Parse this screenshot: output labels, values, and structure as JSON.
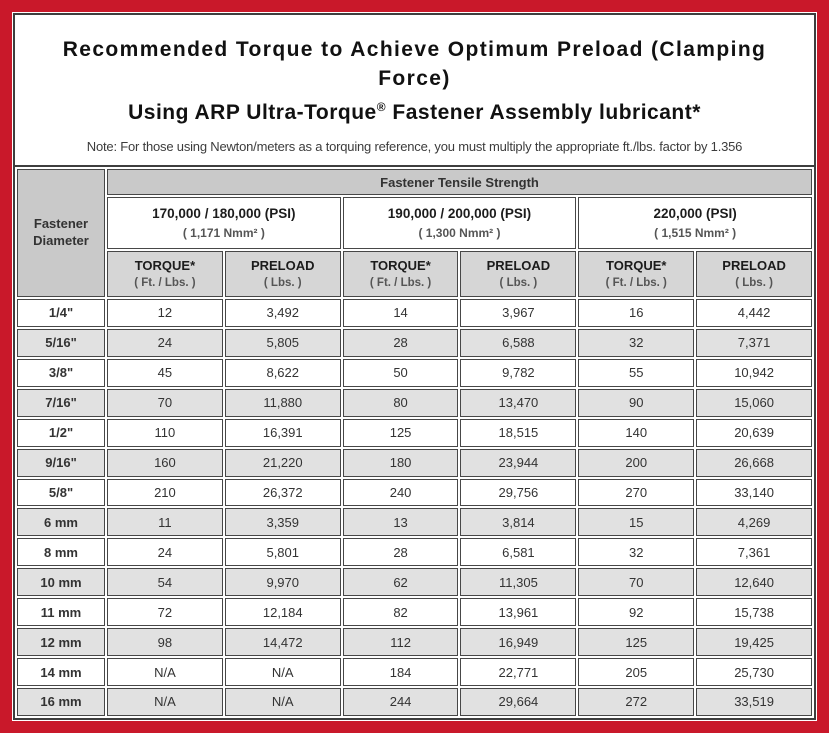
{
  "frame": {
    "border_color": "#c9182a"
  },
  "title": {
    "line1": "Recommended Torque to Achieve Optimum Preload (Clamping Force)",
    "line2_prefix": "Using ARP Ultra-Torque",
    "line2_reg_mark": "®",
    "line2_suffix": " Fastener Assembly lubricant*",
    "note": "Note: For those using Newton/meters as a torquing reference, you must multiply the appropriate ft./lbs. factor by 1.356"
  },
  "table": {
    "corner_header": "Fastener Diameter",
    "tensile_strength_header": "Fastener Tensile Strength",
    "strength_groups": [
      {
        "psi": "170,000 / 180,000 (PSI)",
        "nmm2": "( 1,171 Nmm² )"
      },
      {
        "psi": "190,000 / 200,000 (PSI)",
        "nmm2": "( 1,300 Nmm² )"
      },
      {
        "psi": "220,000 (PSI)",
        "nmm2": "( 1,515 Nmm² )"
      }
    ],
    "measure_headers": [
      {
        "label": "TORQUE*",
        "unit": "( Ft. / Lbs. )"
      },
      {
        "label": "PRELOAD",
        "unit": "( Lbs. )"
      }
    ],
    "rows": [
      {
        "label": "1/4\"",
        "values": [
          "12",
          "3,492",
          "14",
          "3,967",
          "16",
          "4,442"
        ]
      },
      {
        "label": "5/16\"",
        "values": [
          "24",
          "5,805",
          "28",
          "6,588",
          "32",
          "7,371"
        ]
      },
      {
        "label": "3/8\"",
        "values": [
          "45",
          "8,622",
          "50",
          "9,782",
          "55",
          "10,942"
        ]
      },
      {
        "label": "7/16\"",
        "values": [
          "70",
          "11,880",
          "80",
          "13,470",
          "90",
          "15,060"
        ]
      },
      {
        "label": "1/2\"",
        "values": [
          "110",
          "16,391",
          "125",
          "18,515",
          "140",
          "20,639"
        ]
      },
      {
        "label": "9/16\"",
        "values": [
          "160",
          "21,220",
          "180",
          "23,944",
          "200",
          "26,668"
        ]
      },
      {
        "label": "5/8\"",
        "values": [
          "210",
          "26,372",
          "240",
          "29,756",
          "270",
          "33,140"
        ]
      },
      {
        "label": "6 mm",
        "values": [
          "11",
          "3,359",
          "13",
          "3,814",
          "15",
          "4,269"
        ]
      },
      {
        "label": "8 mm",
        "values": [
          "24",
          "5,801",
          "28",
          "6,581",
          "32",
          "7,361"
        ]
      },
      {
        "label": "10 mm",
        "values": [
          "54",
          "9,970",
          "62",
          "11,305",
          "70",
          "12,640"
        ]
      },
      {
        "label": "11 mm",
        "values": [
          "72",
          "12,184",
          "82",
          "13,961",
          "92",
          "15,738"
        ]
      },
      {
        "label": "12 mm",
        "values": [
          "98",
          "14,472",
          "112",
          "16,949",
          "125",
          "19,425"
        ]
      },
      {
        "label": "14 mm",
        "values": [
          "N/A",
          "N/A",
          "184",
          "22,771",
          "205",
          "25,730"
        ]
      },
      {
        "label": "16 mm",
        "values": [
          "N/A",
          "N/A",
          "244",
          "29,664",
          "272",
          "33,519"
        ]
      }
    ],
    "colors": {
      "header_gray": "#c9c9c9",
      "subheader_gray": "#d6d6d6",
      "row_alt_gray": "#e1e1e1"
    }
  }
}
